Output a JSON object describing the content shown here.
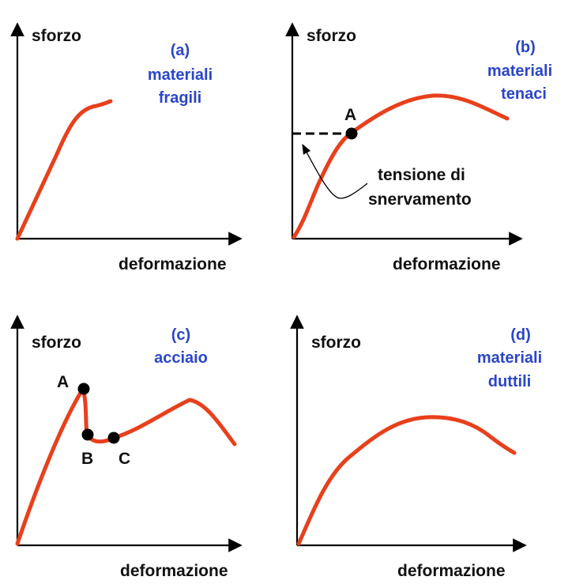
{
  "axis_labels": {
    "stress": "sforzo",
    "strain": "deformazione"
  },
  "panels": [
    {
      "id": "a",
      "letter": "(a)",
      "caption_lines": [
        "materiali",
        "fragili"
      ]
    },
    {
      "id": "b",
      "letter": "(b)",
      "caption_lines": [
        "materiali",
        "tenaci"
      ],
      "point_label": "A",
      "annotation_lines": [
        "tensione di",
        "snervamento"
      ]
    },
    {
      "id": "c",
      "letter": "(c)",
      "caption_lines": [
        "acciaio"
      ],
      "point_labels": [
        "A",
        "B",
        "C"
      ]
    },
    {
      "id": "d",
      "letter": "(d)",
      "caption_lines": [
        "materiali",
        "duttili"
      ]
    }
  ],
  "colors": {
    "curve": "#e8401c",
    "caption": "#2a46c8",
    "axis": "#000000"
  }
}
